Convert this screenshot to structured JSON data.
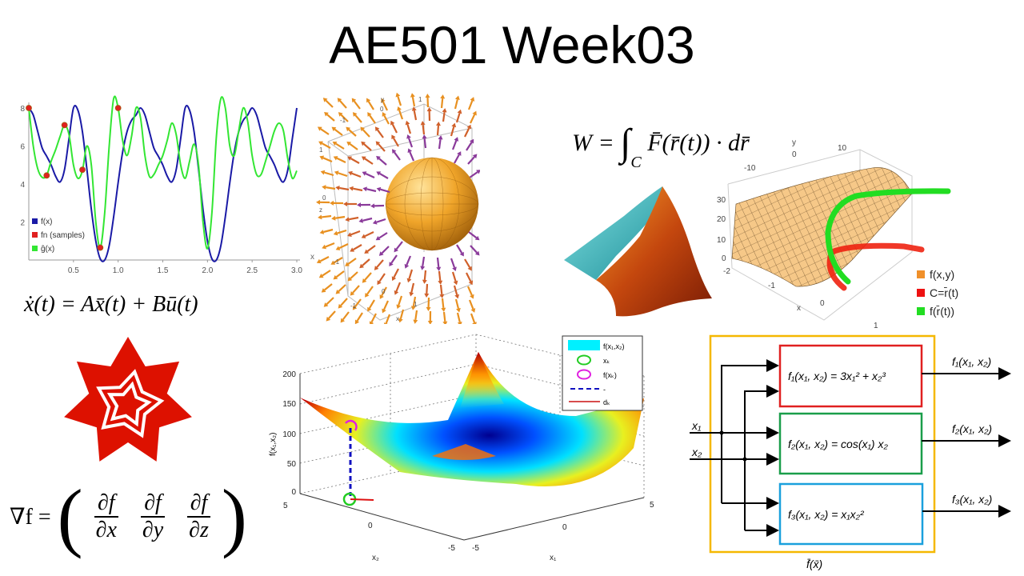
{
  "title": "AE501 Week03",
  "equations": {
    "work": {
      "lhs": "W =",
      "integral": "∫",
      "sub": "C",
      "rhs": "F̄(r̄(t)) · dr̄"
    },
    "state_space": "ẋ(t) = Ax̄(t) + Bū(t)",
    "gradient": {
      "lhs": "∇f =",
      "open": "(",
      "close": ")",
      "num": [
        "∂f",
        "∂f",
        "∂f"
      ],
      "den": [
        "∂x",
        "∂y",
        "∂z"
      ]
    }
  },
  "colors": {
    "blue": "#1a1aa6",
    "green": "#33e633",
    "red": "#e02020",
    "orange": "#f0a030",
    "wolfram_red": "#dd1100",
    "yellow_box": "#f5b800",
    "green_box": "#1a9e4a",
    "cyan_box": "#1aa0dd"
  },
  "chart_data": {
    "type": "line",
    "xlabel": "x",
    "xlim": [
      0,
      3
    ],
    "ylim": [
      0,
      8.5
    ],
    "x_ticks": [
      "0.5",
      "1.0",
      "1.5",
      "2.0",
      "2.5",
      "3.0"
    ],
    "y_ticks": [
      "2",
      "4",
      "6",
      "8"
    ],
    "legend": [
      "f(x)",
      "fn (samples)",
      "ĝ(x)"
    ],
    "legend_position": "bottom-left",
    "x_step": 0.05,
    "series": [
      {
        "name": "f(x)",
        "color": "#1a1aa6",
        "values": [
          8,
          7.63,
          6.76,
          5.89,
          5.46,
          5.0,
          4.41,
          4.11,
          4.76,
          6.39,
          8.0,
          7.88,
          6.76,
          4.79,
          2.67,
          1.0,
          0.06,
          0.0,
          0.76,
          2.28,
          4.07,
          5.67,
          6.76,
          7.35,
          7.63,
          8.0,
          7.63,
          6.76,
          5.89,
          5.46,
          5.0,
          4.41,
          4.11,
          4.76,
          6.39,
          8.0,
          7.88,
          6.76,
          4.79,
          2.67,
          1.0,
          0.06,
          0.0,
          0.76,
          2.28,
          4.07,
          5.67,
          6.76,
          7.35,
          7.63,
          8.0,
          7.63,
          6.76,
          5.89,
          5.46,
          5.0,
          4.41,
          4.11,
          4.76,
          6.39,
          8.0
        ]
      },
      {
        "name": "ĝ(x)",
        "color": "#33e633",
        "values": [
          8,
          6,
          4.8,
          4.35,
          4.45,
          5.2,
          5.8,
          6.5,
          7.1,
          6.6,
          5,
          4.3,
          4.7,
          6.0,
          5.0,
          2,
          0.65,
          2.5,
          6,
          8.5,
          8.0,
          6.3,
          5.5,
          6.5,
          8.0,
          7.5,
          5.5,
          4.4,
          4.5,
          5,
          5.5,
          6.3,
          7.2,
          6.6,
          5,
          4.3,
          5.2,
          6.1,
          5,
          2,
          0.6,
          2.5,
          6.5,
          8.5,
          8.0,
          6,
          5.5,
          6.8,
          8.0,
          7.3,
          5.5,
          4.5,
          4.5,
          5.2,
          6,
          6.8,
          7.2,
          6.8,
          5.3,
          4.3,
          4.7
        ]
      }
    ],
    "samples": {
      "name": "fn (samples)",
      "color": "#e02020",
      "x": [
        0,
        0.2,
        0.4,
        0.6,
        0.8,
        1.0
      ],
      "y": [
        8,
        4.45,
        7.1,
        4.75,
        0.65,
        8
      ]
    }
  },
  "vector_field": {
    "axis_labels": {
      "x": "x",
      "y": "y",
      "z": "z"
    },
    "ticks_top": [
      "-1",
      "0",
      "1"
    ],
    "ticks_left": [
      "1",
      "0",
      "-1"
    ],
    "ticks_bottom": [
      "-1",
      "0",
      "1"
    ]
  },
  "surface_plot_top": {
    "y_label": "y",
    "x_label": "x",
    "y_ticks": [
      "-10",
      "0",
      "10"
    ],
    "z_ticks": [
      "30",
      "20",
      "10",
      "0"
    ],
    "x_ticks": [
      "-2",
      "-1",
      "0",
      "1"
    ],
    "legend": [
      {
        "label": "f(x,y)",
        "color": "#f0902a"
      },
      {
        "label": "C=r̄(t)",
        "color": "#ee1111"
      },
      {
        "label": "f(r̄(t))",
        "color": "#22dd22"
      }
    ]
  },
  "surface_plot_matlab": {
    "z_label": "f(x₁,x₂)",
    "z_ticks": [
      "200",
      "150",
      "100",
      "50",
      "0"
    ],
    "x2_label": "x₂",
    "x2_ticks": [
      "5",
      "0",
      "-5"
    ],
    "x1_label": "x₁",
    "x1_ticks": [
      "-5",
      "0",
      "5"
    ],
    "legend": [
      "f(x₁,x₂)",
      "xₖ",
      "f(xₖ)",
      "-",
      "dₖ"
    ]
  },
  "block_diagram": {
    "inputs": [
      "x₁",
      "x₂"
    ],
    "blocks": [
      "f₁(x₁, x₂) = 3x₁² + x₂³",
      "f₂(x₁, x₂) = cos(x₁) x₂",
      "f₃(x₁, x₂) = x₁x₂²"
    ],
    "outputs": [
      "f₁(x₁, x₂)",
      "f₂(x₁, x₂)",
      "f₃(x₁, x₂)"
    ],
    "caption": "f̄(x̄)"
  }
}
